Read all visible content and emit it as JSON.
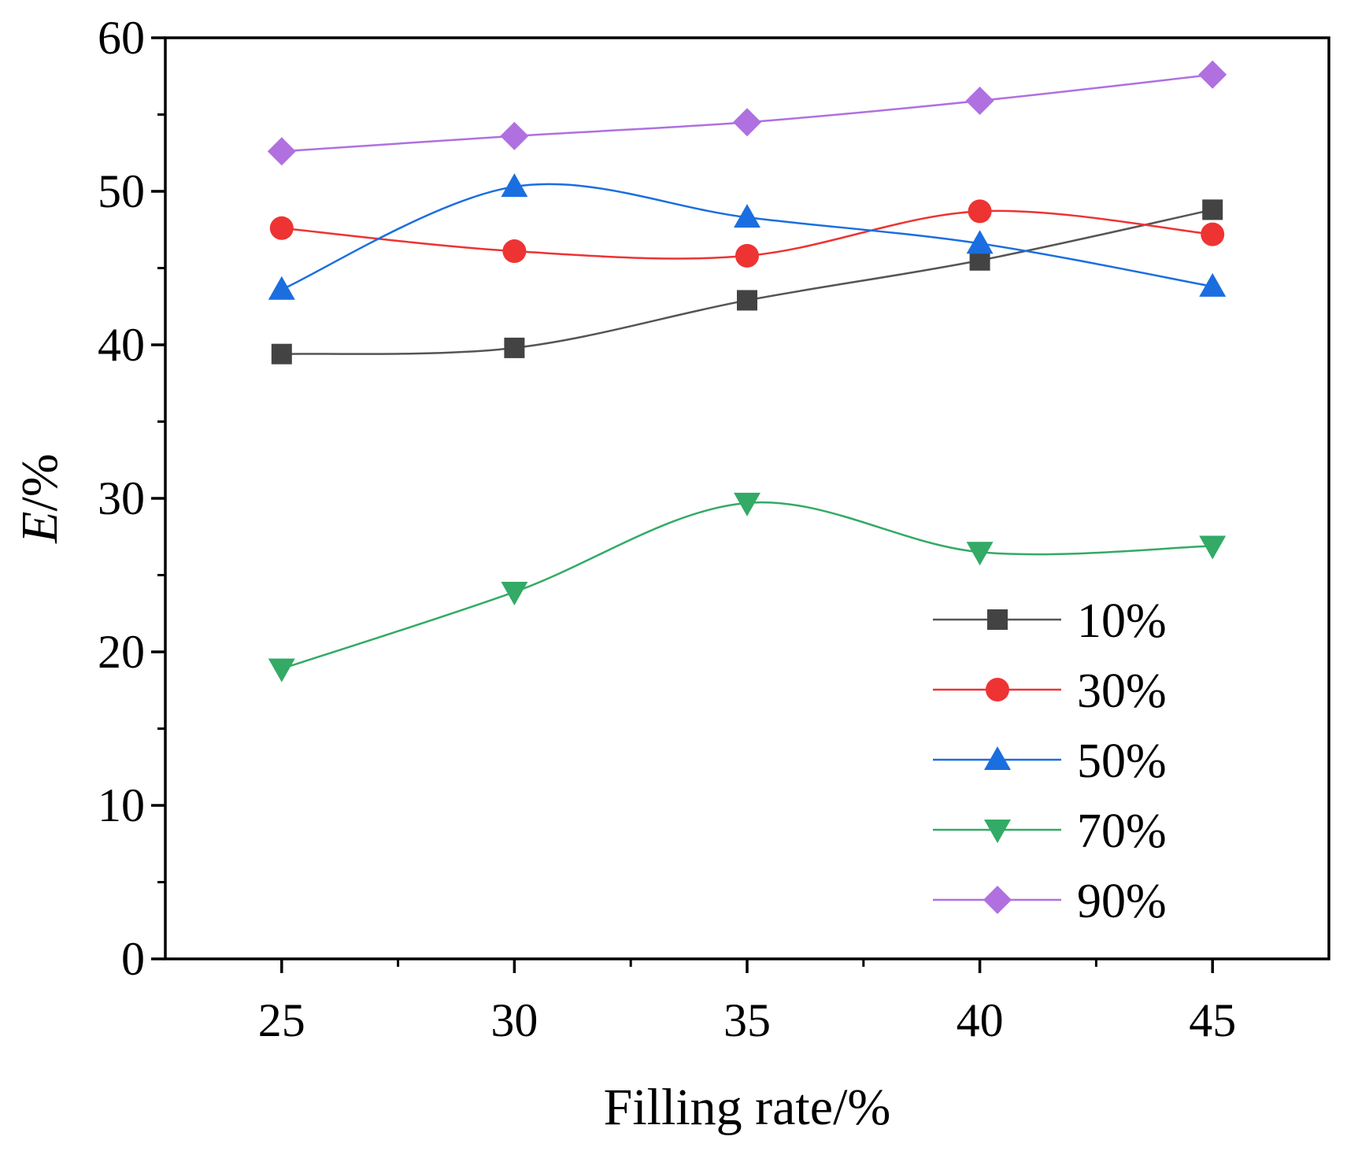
{
  "chart_data": {
    "type": "line",
    "title": "",
    "xlabel": "Filling rate/%",
    "ylabel_italic": "E",
    "ylabel_rest": "/%",
    "xlim": [
      22.5,
      47.5
    ],
    "ylim": [
      0,
      60
    ],
    "x": [
      25,
      30,
      35,
      40,
      45
    ],
    "x_ticks": [
      25,
      30,
      35,
      40,
      45
    ],
    "y_ticks": [
      0,
      10,
      20,
      30,
      40,
      50,
      60
    ],
    "grid": false,
    "legend_position": "right",
    "series": [
      {
        "name": "10%",
        "marker": "square",
        "color": "#434343",
        "line_color": "#555555",
        "values": [
          39.4,
          39.8,
          42.9,
          45.5,
          48.8
        ]
      },
      {
        "name": "30%",
        "marker": "circle",
        "color": "#ee3333",
        "line_color": "#ee3333",
        "values": [
          47.6,
          46.1,
          45.8,
          48.7,
          47.2
        ]
      },
      {
        "name": "50%",
        "marker": "triangle-up",
        "color": "#1a6ee0",
        "line_color": "#1a6ee0",
        "values": [
          43.6,
          50.3,
          48.3,
          46.6,
          43.8
        ]
      },
      {
        "name": "70%",
        "marker": "triangle-down",
        "color": "#33aa66",
        "line_color": "#33aa66",
        "values": [
          18.9,
          23.9,
          29.7,
          26.5,
          26.9
        ]
      },
      {
        "name": "90%",
        "marker": "diamond",
        "color": "#b070e0",
        "line_color": "#b070e0",
        "values": [
          52.6,
          53.6,
          54.5,
          55.9,
          57.6
        ]
      }
    ]
  }
}
